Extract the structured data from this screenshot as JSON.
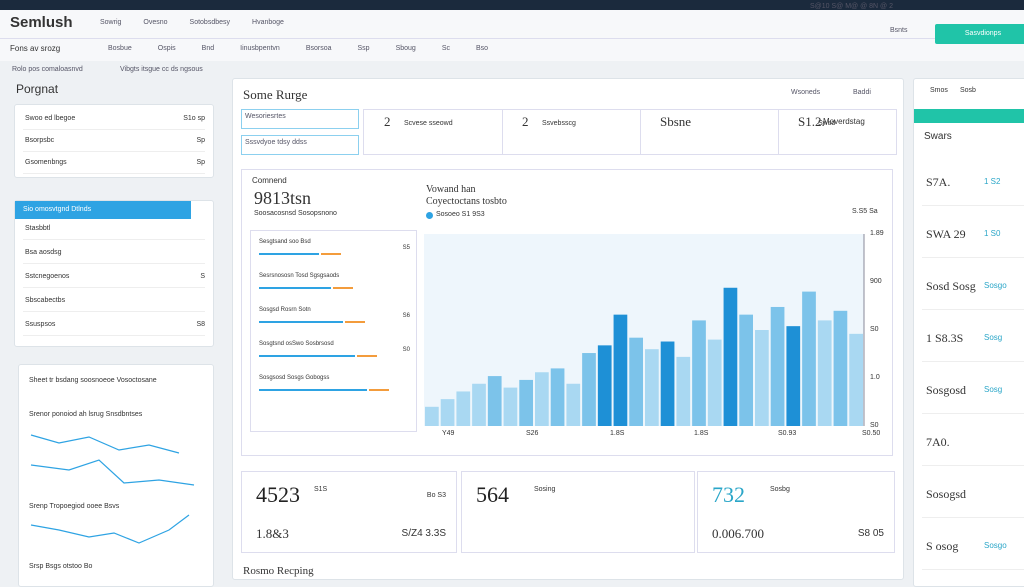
{
  "header": {
    "brand": "Semlush",
    "nav": [
      "Sowrig",
      "Ovesno",
      "Sotobsdbesy",
      "Hvanboge"
    ],
    "right": "S@10 S@ M@ @ 8N @ 2"
  },
  "subnav": {
    "label": "Fons av srozg",
    "items": [
      "Bosbue",
      "Ospis",
      "Bnd",
      "Iinusbpentvn",
      "Bsorsoa",
      "Ssp",
      "Sboug",
      "Sc",
      "Bso"
    ],
    "search": "Bsnts",
    "button": "Sasvdionps"
  },
  "breadcrumb": [
    "Rolo pos comaloasnvd",
    "Vibgts itsgue cc ds ngsous"
  ],
  "sidebar": {
    "title": "Porgnat",
    "panel1": [
      [
        "Swoo ed lbegoe",
        "S1o sp"
      ],
      [
        "Bsorpsbc",
        "Sp"
      ],
      [
        "Gsomenbngs",
        "Sp"
      ]
    ],
    "panel2_title": "Sio omosvtgnd Dtlnds",
    "panel2": [
      [
        "Stasbbtl",
        ""
      ],
      [
        "Bsa aosdsg",
        ""
      ],
      [
        "Sstcnegoenos",
        "S"
      ],
      [
        "Sbscabectbs",
        ""
      ],
      [
        "Ssuspsos",
        "S8"
      ]
    ],
    "panel3": [
      "Sheet tr bsdang soosnoeoe Vosoctosane",
      "Srenor ponoiod ah lsrug Snsdbntses",
      "Srenp Tropoegiod ooee Bsvs",
      "Srsp Bsgs otstoo Bo"
    ]
  },
  "main": {
    "title": "Some Rurge",
    "tools": [
      "Wsoneds",
      "Baddi"
    ],
    "filters": [
      "Wesoriesrtes",
      "Sssvdyoe tdsy ddss"
    ],
    "stats": [
      [
        "2",
        "Scvese sseowd"
      ],
      [
        "2",
        "Ssvebsscg"
      ],
      [
        "Sbsne",
        ""
      ],
      [
        "S1.2.",
        "Swsd"
      ]
    ],
    "stat_right": "Moverdstag",
    "overview": {
      "label": "Comnend",
      "big": "9813tsn",
      "sub": "Soosacosnsd Sosopsnono",
      "rows": [
        [
          "Sesgtsand soo Bsd",
          "S5"
        ],
        [
          "Sesrsnososn Tosd Sgsgsaods",
          ""
        ],
        [
          "Sosgsd Rosrn Sotn",
          "S6"
        ],
        [
          "Sosgtsnd osSwo Sosbrsosd",
          "S0"
        ],
        [
          "Sosgsosd Sosgs Gobogss",
          ""
        ]
      ]
    },
    "chart": {
      "title": "Vowand han",
      "subtitle": "Coyectoctans tosbto",
      "legend": "Sosoeo S1 9S3",
      "corner": "S.S5 Sa",
      "ylim": [
        0,
        100
      ],
      "values": [
        10,
        14,
        18,
        22,
        26,
        20,
        24,
        28,
        30,
        22,
        38,
        42,
        58,
        46,
        40,
        44,
        36,
        55,
        45,
        72,
        58,
        50,
        62,
        52,
        70,
        55,
        60,
        48
      ],
      "colors": [
        "#a9d8f2",
        "#a9d8f2",
        "#a9d8f2",
        "#a9d8f2",
        "#7cc3ea",
        "#a9d8f2",
        "#7cc3ea",
        "#a9d8f2",
        "#7cc3ea",
        "#a9d8f2",
        "#7cc3ea",
        "#1e90d6",
        "#1e90d6",
        "#7cc3ea",
        "#a9d8f2",
        "#1e90d6",
        "#a9d8f2",
        "#7cc3ea",
        "#a9d8f2",
        "#1e90d6",
        "#7cc3ea",
        "#a9d8f2",
        "#7cc3ea",
        "#1e90d6",
        "#7cc3ea",
        "#a9d8f2",
        "#7cc3ea",
        "#a9d8f2"
      ],
      "right_labels": [
        "1.89",
        "900",
        "S0",
        "1.0",
        "S0"
      ],
      "x_labels": [
        "Y49",
        "S26",
        "1.8S",
        "1.8S",
        "S0.93",
        "S0.50"
      ]
    },
    "cards": [
      {
        "big": "4523",
        "tag": "S1S",
        "small": "1.8&3",
        "right": "S/Z4 3.3S",
        "corner": "Bo S3"
      },
      {
        "big": "564",
        "tag": "Sosing",
        "small": "",
        "right": "",
        "corner": ""
      },
      {
        "big": "732",
        "tag": "Sosbg",
        "small": "0.006.700",
        "right": "S8 05",
        "corner": ""
      }
    ],
    "footer": "Rosmo Recping"
  },
  "right": {
    "tabs": [
      "Smos",
      "Sosb"
    ],
    "title": "Swars",
    "items": [
      [
        "S7A.",
        "1 S2"
      ],
      [
        "SWA 29",
        "1 S0"
      ],
      [
        "Sosd Sosg",
        "Sosgo"
      ],
      [
        "1 S8.3S",
        "Sosg"
      ],
      [
        "Sosgosd",
        "Sosg"
      ],
      [
        "7A0.",
        ""
      ],
      [
        "Sosogsd",
        ""
      ],
      [
        "S osog",
        "Sosgo"
      ]
    ]
  }
}
